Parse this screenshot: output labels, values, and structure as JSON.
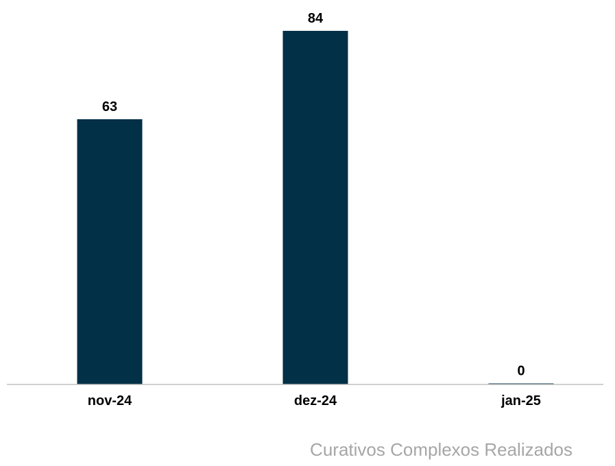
{
  "chart_data": {
    "type": "bar",
    "categories": [
      "nov-24",
      "dez-24",
      "jan-25"
    ],
    "series": [
      {
        "name": "Curativos Complexos Realizados",
        "values": [
          63,
          84,
          0
        ],
        "color": "#023047"
      }
    ],
    "data_labels": [
      "63",
      "84",
      "0"
    ],
    "ylim": [
      0,
      84
    ],
    "axis_color": "#c0c0c0",
    "label_color": "#000000",
    "grid": false,
    "legend_position": "bottom-right"
  }
}
